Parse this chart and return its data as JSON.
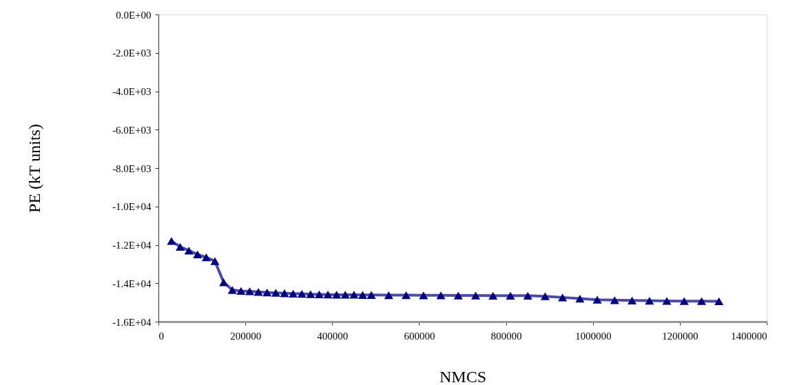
{
  "chart_data": {
    "type": "line",
    "xlabel": "NMCS",
    "ylabel": "PE  (kT units)",
    "marker": "triangle",
    "line_style": "solid",
    "grid": false,
    "xlim": [
      0,
      1400000
    ],
    "xticks": [
      0,
      200000,
      400000,
      600000,
      800000,
      1000000,
      1200000,
      1400000
    ],
    "ylim": [
      -16000,
      0
    ],
    "yticks": [
      {
        "value": 0,
        "label": "0.0E+00"
      },
      {
        "value": -2000,
        "label": "-2.0E+03"
      },
      {
        "value": -4000,
        "label": "-4.0E+03"
      },
      {
        "value": -6000,
        "label": "-6.0E+03"
      },
      {
        "value": -8000,
        "label": "-8.0E+03"
      },
      {
        "value": -10000,
        "label": "-1.0E+04"
      },
      {
        "value": -12000,
        "label": "-1.2E+04"
      },
      {
        "value": -14000,
        "label": "-1.4E+04"
      },
      {
        "value": -16000,
        "label": "-1.6E+04"
      }
    ],
    "x": [
      30000,
      50000,
      70000,
      90000,
      110000,
      130000,
      150000,
      170000,
      190000,
      210000,
      230000,
      250000,
      270000,
      290000,
      310000,
      330000,
      350000,
      370000,
      390000,
      410000,
      430000,
      450000,
      470000,
      490000,
      530000,
      570000,
      610000,
      650000,
      690000,
      730000,
      770000,
      810000,
      850000,
      890000,
      930000,
      970000,
      1010000,
      1050000,
      1090000,
      1130000,
      1170000,
      1210000,
      1250000,
      1290000
    ],
    "series": [
      {
        "color": "#000080",
        "values": [
          -11800,
          -12100,
          -12300,
          -12500,
          -12650,
          -12850,
          -13950,
          -14350,
          -14400,
          -14420,
          -14450,
          -14480,
          -14500,
          -14520,
          -14540,
          -14550,
          -14570,
          -14580,
          -14590,
          -14600,
          -14600,
          -14600,
          -14610,
          -14610,
          -14620,
          -14620,
          -14630,
          -14630,
          -14640,
          -14640,
          -14650,
          -14650,
          -14650,
          -14680,
          -14740,
          -14800,
          -14860,
          -14880,
          -14900,
          -14910,
          -14920,
          -14930,
          -14930,
          -14940
        ]
      }
    ]
  }
}
